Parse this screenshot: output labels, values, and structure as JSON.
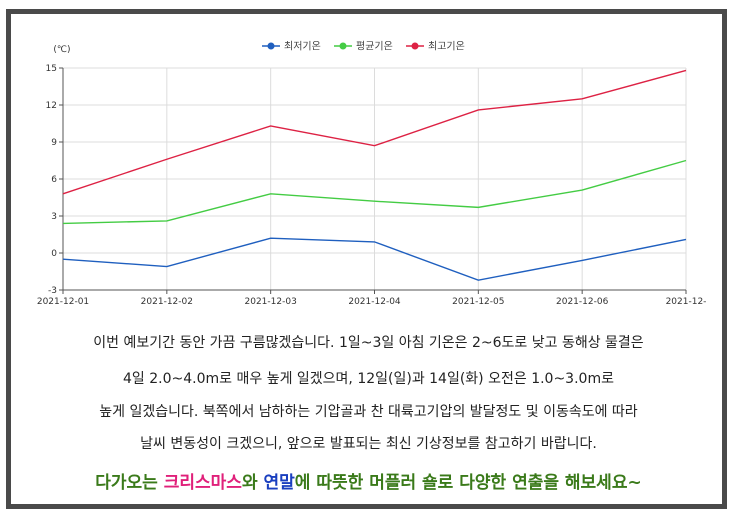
{
  "chart_data": {
    "type": "line",
    "ylabel": "(℃)",
    "x": [
      "2021-12-01",
      "2021-12-02",
      "2021-12-03",
      "2021-12-04",
      "2021-12-05",
      "2021-12-06",
      "2021-12-"
    ],
    "ylim": [
      -3,
      15
    ],
    "yticks": [
      -3,
      0,
      3,
      6,
      9,
      12,
      15
    ],
    "grid": true,
    "legend_position": "top",
    "series": [
      {
        "name": "최저기온",
        "color": "#1f5fbf",
        "values": [
          -0.5,
          -1.1,
          1.2,
          0.9,
          -2.2,
          -0.6,
          1.1
        ]
      },
      {
        "name": "평균기온",
        "color": "#44cc44",
        "values": [
          2.4,
          2.6,
          4.8,
          4.2,
          3.7,
          5.1,
          7.5
        ]
      },
      {
        "name": "최고기온",
        "color": "#dd2244",
        "values": [
          4.8,
          7.6,
          10.3,
          8.7,
          11.6,
          12.5,
          14.8
        ]
      }
    ]
  },
  "text": {
    "line1": "이번 예보기간 동안 가끔 구름많겠습니다. 1일~3일 아침 기온은 2~6도로 낮고 동해상 물결은",
    "line2": "4일 2.0~4.0m로 매우 높게 일겠으며, 12일(일)과 14일(화) 오전은 1.0~3.0m로",
    "line3": "높게 일겠습니다. 북쪽에서 남하하는 기압골과 찬 대륙고기압의 발달정도 및 이동속도에 따라",
    "line4": "날씨 변동성이 크겠으니, 앞으로 발표되는 최신 기상정보를 참고하기 바랍니다.",
    "closing": [
      {
        "text": "다가오는 ",
        "color": "#3a7a1a"
      },
      {
        "text": "크리스마스",
        "color": "#e0207a"
      },
      {
        "text": "와 ",
        "color": "#3a7a1a"
      },
      {
        "text": "연말",
        "color": "#1a3fbf"
      },
      {
        "text": "에 따뜻한 머플러 숄로 다양한 연출을 해보세요~",
        "color": "#3a7a1a"
      }
    ]
  }
}
